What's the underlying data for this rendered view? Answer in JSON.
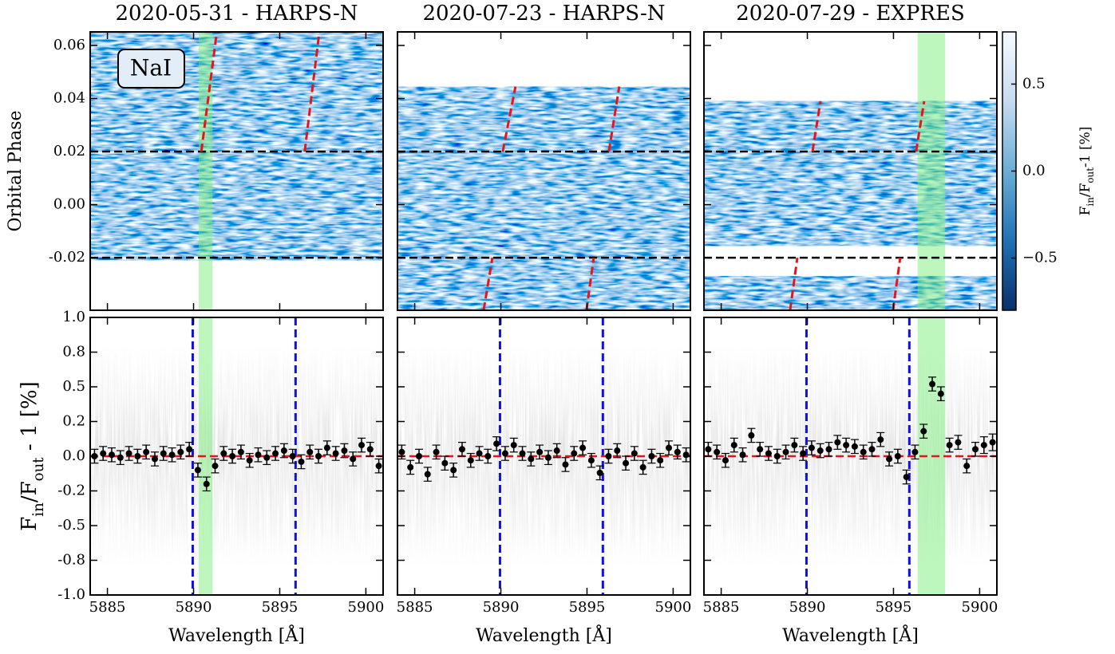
{
  "chart_data": [
    {
      "type": "heatmap",
      "title": "2020-05-31 - HARPS-N",
      "annotation": "NaI",
      "ylabel": "Orbital Phase",
      "xlim": [
        5884.0,
        5901.0
      ],
      "ylim": [
        -0.0398,
        0.0651
      ],
      "xticks": [
        5885,
        5890,
        5895,
        5900
      ],
      "yticks": [
        0.06,
        0.04,
        0.02,
        {
          "value": 0,
          "label": "0.00"
        },
        -0.02
      ],
      "coverage": [
        [
          -0.021,
          0.0651
        ]
      ],
      "transit_limits": [
        -0.02,
        0.02
      ],
      "highlight": [
        5890.3,
        5891.1
      ],
      "planet_trace": [
        [
          [
            5890.45,
            0.02
          ],
          [
            5891.35,
            0.0651
          ]
        ],
        [
          [
            5896.45,
            0.02
          ],
          [
            5897.3,
            0.0651
          ]
        ]
      ]
    },
    {
      "type": "heatmap",
      "title": "2020-07-23 - HARPS-N",
      "xlim": [
        5884.0,
        5901.0
      ],
      "ylim": [
        -0.0398,
        0.0651
      ],
      "xticks": [
        5885,
        5890,
        5895,
        5900
      ],
      "yticks": [
        0.06,
        0.04,
        0.02,
        0,
        -0.02
      ],
      "coverage": [
        [
          -0.0398,
          0.0445
        ]
      ],
      "transit_limits": [
        -0.02,
        0.02
      ],
      "planet_trace": [
        [
          [
            5890.11,
            0.02
          ],
          [
            5890.85,
            0.0445
          ]
        ],
        [
          [
            5896.27,
            0.02
          ],
          [
            5896.87,
            0.0445
          ]
        ],
        [
          [
            5889.0,
            -0.0398
          ],
          [
            5889.51,
            -0.02
          ]
        ],
        [
          [
            5894.97,
            -0.0398
          ],
          [
            5895.39,
            -0.02
          ]
        ]
      ]
    },
    {
      "type": "heatmap",
      "title": "2020-07-29 - EXPRES",
      "xlim": [
        5884.0,
        5901.0
      ],
      "ylim": [
        -0.0398,
        0.0651
      ],
      "xticks": [
        5885,
        5890,
        5895,
        5900
      ],
      "yticks": [
        0.06,
        0.04,
        0.02,
        0,
        -0.02
      ],
      "coverage": [
        [
          -0.0155,
          0.039
        ],
        [
          -0.0398,
          -0.027
        ]
      ],
      "transit_limits": [
        -0.02,
        0.02
      ],
      "highlight": [
        5896.4,
        5898.0
      ],
      "planet_trace": [
        [
          [
            5890.3,
            0.02
          ],
          [
            5890.76,
            0.039
          ]
        ],
        [
          [
            5896.31,
            0.02
          ],
          [
            5896.78,
            0.039
          ]
        ],
        [
          [
            5889.0,
            -0.0398
          ],
          [
            5889.42,
            -0.02
          ]
        ],
        [
          [
            5894.97,
            -0.0398
          ],
          [
            5895.39,
            -0.02
          ]
        ]
      ],
      "colorbar": {
        "label_parts": [
          "F",
          "in",
          "/F",
          "out",
          "-1 [%]"
        ],
        "clim": [
          -0.8,
          0.8
        ],
        "ticks": [
          0.5,
          {
            "value": 0,
            "label": "0.0"
          },
          {
            "value": -0.5,
            "label": "−0.5"
          }
        ]
      }
    },
    {
      "type": "errorbar",
      "ylabel_parts": [
        "F",
        "in",
        "/F",
        "out",
        " - 1 [%]"
      ],
      "xlabel": "Wavelength [Å]",
      "xlim": [
        5884.0,
        5901.0
      ],
      "ylim": [
        -1,
        1
      ],
      "xticks": [
        5885,
        5890,
        5895,
        5900
      ],
      "yticks": [
        {
          "value": 1,
          "label": "1.0"
        },
        {
          "value": 0.75,
          "label": "0.8"
        },
        0.5,
        {
          "value": 0.25,
          "label": "0.2"
        },
        {
          "value": 0,
          "label": "0.0"
        },
        {
          "value": -0.25,
          "label": "-0.2"
        },
        -0.5,
        {
          "value": -0.75,
          "label": "-0.8"
        },
        {
          "value": -1,
          "label": "-1.0"
        }
      ],
      "reference_level": 0,
      "na_lines": [
        5889.95,
        5895.92
      ],
      "highlight": [
        5890.3,
        5891.1
      ],
      "x": [
        5884.25,
        5884.75,
        5885.25,
        5885.75,
        5886.25,
        5886.75,
        5887.25,
        5887.75,
        5888.25,
        5888.75,
        5889.25,
        5889.75,
        5890.25,
        5890.75,
        5891.25,
        5891.75,
        5892.25,
        5892.75,
        5893.25,
        5893.75,
        5894.25,
        5894.75,
        5895.25,
        5895.75,
        5896.25,
        5896.75,
        5897.25,
        5897.75,
        5898.25,
        5898.75,
        5899.25,
        5899.75,
        5900.25,
        5900.75
      ],
      "values": [
        0.0,
        0.02,
        0.01,
        -0.01,
        0.02,
        0.0,
        0.03,
        -0.02,
        0.02,
        0.01,
        0.03,
        0.05,
        -0.1,
        -0.2,
        -0.07,
        0.02,
        0.0,
        0.03,
        -0.03,
        0.01,
        -0.01,
        0.02,
        0.04,
        0.0,
        -0.04,
        0.03,
        0.0,
        0.06,
        0.02,
        0.04,
        -0.02,
        0.08,
        0.05,
        -0.07
      ],
      "errors": [
        0.05,
        0.05,
        0.05,
        0.05,
        0.05,
        0.05,
        0.05,
        0.05,
        0.05,
        0.05,
        0.05,
        0.05,
        0.05,
        0.05,
        0.05,
        0.05,
        0.05,
        0.05,
        0.05,
        0.05,
        0.05,
        0.05,
        0.05,
        0.05,
        0.05,
        0.05,
        0.05,
        0.05,
        0.05,
        0.05,
        0.05,
        0.05,
        0.05,
        0.05
      ]
    },
    {
      "type": "errorbar",
      "xlabel": "Wavelength [Å]",
      "xlim": [
        5884.0,
        5901.0
      ],
      "ylim": [
        -1,
        1
      ],
      "xticks": [
        5885,
        5890,
        5895,
        5900
      ],
      "yticks": [
        1,
        0.75,
        0.5,
        0.25,
        0,
        -0.25,
        -0.5,
        -0.75,
        -1
      ],
      "reference_level": 0,
      "na_lines": [
        5889.95,
        5895.92
      ],
      "x": [
        5884.25,
        5884.75,
        5885.25,
        5885.75,
        5886.25,
        5886.75,
        5887.25,
        5887.75,
        5888.25,
        5888.75,
        5889.25,
        5889.75,
        5890.25,
        5890.75,
        5891.25,
        5891.75,
        5892.25,
        5892.75,
        5893.25,
        5893.75,
        5894.25,
        5894.75,
        5895.25,
        5895.75,
        5896.25,
        5896.75,
        5897.25,
        5897.75,
        5898.25,
        5898.75,
        5899.25,
        5899.75,
        5900.25,
        5900.75
      ],
      "values": [
        0.03,
        -0.08,
        0.0,
        -0.13,
        0.03,
        -0.05,
        -0.1,
        0.05,
        -0.03,
        0.02,
        0.0,
        0.09,
        0.02,
        0.08,
        0.02,
        -0.02,
        0.03,
        -0.01,
        0.04,
        -0.06,
        0.02,
        0.06,
        -0.03,
        -0.12,
        0.0,
        0.04,
        -0.05,
        0.02,
        -0.08,
        0.0,
        -0.03,
        0.06,
        0.03,
        0.01
      ],
      "errors": [
        0.05,
        0.05,
        0.05,
        0.05,
        0.05,
        0.05,
        0.05,
        0.05,
        0.05,
        0.05,
        0.05,
        0.05,
        0.05,
        0.05,
        0.05,
        0.05,
        0.05,
        0.05,
        0.05,
        0.05,
        0.05,
        0.05,
        0.05,
        0.05,
        0.05,
        0.05,
        0.05,
        0.05,
        0.05,
        0.05,
        0.05,
        0.05,
        0.05,
        0.05
      ]
    },
    {
      "type": "errorbar",
      "xlabel": "Wavelength [Å]",
      "xlim": [
        5884.0,
        5901.0
      ],
      "ylim": [
        -1,
        1
      ],
      "xticks": [
        5885,
        5890,
        5895,
        5900
      ],
      "yticks": [
        1,
        0.75,
        0.5,
        0.25,
        0,
        -0.25,
        -0.5,
        -0.75,
        -1
      ],
      "reference_level": 0,
      "na_lines": [
        5889.95,
        5895.92
      ],
      "highlight": [
        5896.4,
        5898.0
      ],
      "x": [
        5884.25,
        5884.75,
        5885.25,
        5885.75,
        5886.25,
        5886.75,
        5887.25,
        5887.75,
        5888.25,
        5888.75,
        5889.25,
        5889.75,
        5890.25,
        5890.75,
        5891.25,
        5891.75,
        5892.25,
        5892.75,
        5893.25,
        5893.75,
        5894.25,
        5894.75,
        5895.25,
        5895.75,
        5896.25,
        5896.75,
        5897.25,
        5897.75,
        5898.25,
        5898.75,
        5899.25,
        5899.75,
        5900.25,
        5900.75
      ],
      "values": [
        0.05,
        0.03,
        -0.03,
        0.08,
        0.01,
        0.15,
        0.05,
        0.02,
        0.0,
        0.03,
        0.08,
        0.02,
        0.06,
        0.04,
        0.05,
        0.1,
        0.08,
        0.07,
        0.03,
        0.05,
        0.12,
        -0.02,
        0.0,
        -0.15,
        0.03,
        0.18,
        0.52,
        0.45,
        0.08,
        0.1,
        -0.07,
        0.05,
        0.08,
        0.1
      ],
      "errors": [
        0.05,
        0.05,
        0.05,
        0.05,
        0.05,
        0.05,
        0.05,
        0.05,
        0.05,
        0.05,
        0.05,
        0.05,
        0.05,
        0.05,
        0.05,
        0.05,
        0.05,
        0.05,
        0.05,
        0.05,
        0.05,
        0.05,
        0.05,
        0.05,
        0.05,
        0.05,
        0.05,
        0.05,
        0.05,
        0.05,
        0.05,
        0.05,
        0.06,
        0.06
      ]
    }
  ]
}
